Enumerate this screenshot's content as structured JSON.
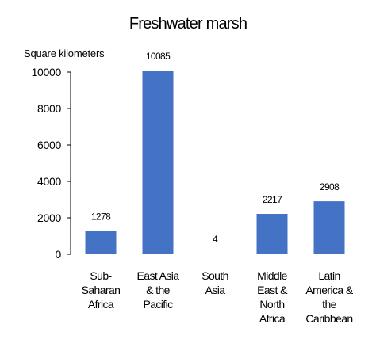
{
  "chart_data": {
    "type": "bar",
    "title": "Freshwater marsh",
    "ylabel": "Square kilometers",
    "xlabel": "",
    "categories": [
      [
        "Sub-",
        "Saharan",
        "Africa"
      ],
      [
        "East Asia",
        "& the",
        "Pacific"
      ],
      [
        "South",
        "Asia"
      ],
      [
        "Middle",
        "East &",
        "North",
        "Africa"
      ],
      [
        "Latin",
        "America &",
        "the",
        "Caribbean"
      ]
    ],
    "values": [
      1278,
      10085,
      4,
      2217,
      2908
    ],
    "data_labels": [
      "1278",
      "10085",
      "4",
      "2217",
      "2908"
    ],
    "ylim": [
      0,
      10000
    ],
    "yticks": [
      0,
      2000,
      4000,
      6000,
      8000,
      10000
    ],
    "ytick_labels": [
      "0",
      "2000",
      "4000",
      "6000",
      "8000",
      "10000"
    ],
    "grid": false,
    "bar_color": "#4472c4"
  }
}
